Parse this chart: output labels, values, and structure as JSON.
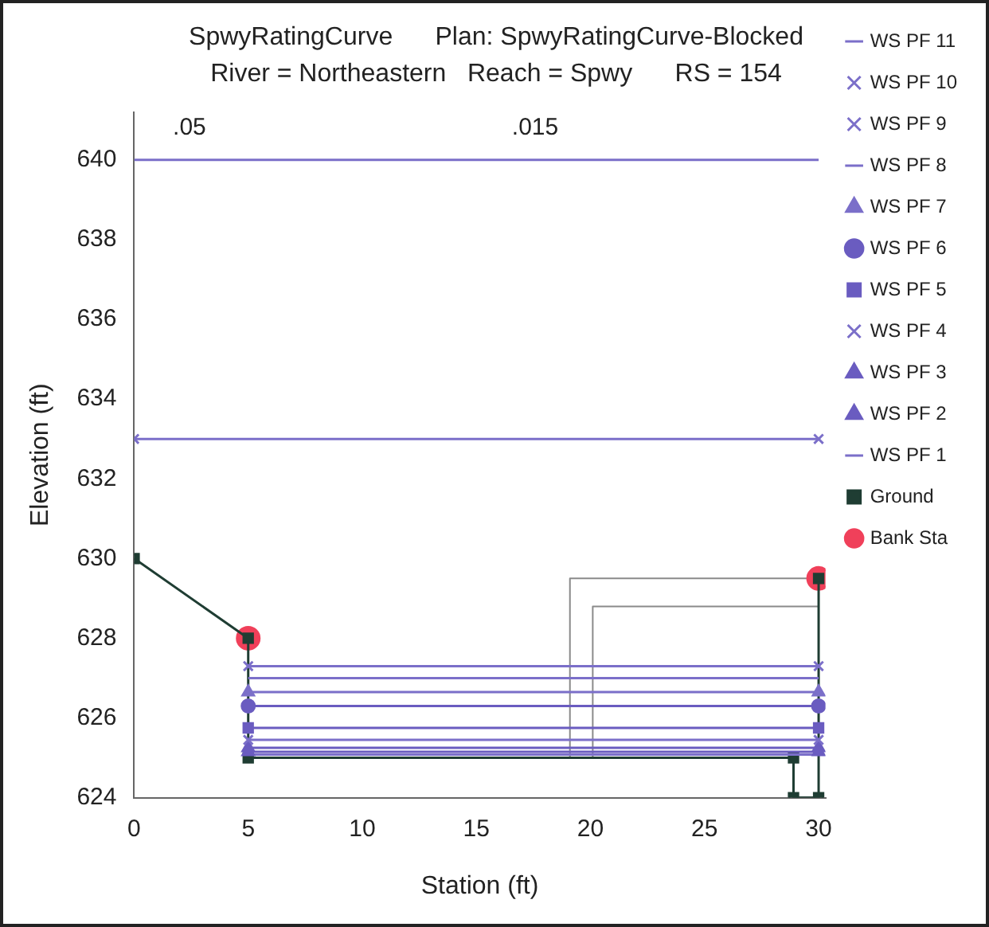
{
  "chart_data": {
    "type": "line",
    "title": "SpwyRatingCurve      Plan: SpwyRatingCurve-Blocked",
    "subtitle": "River = Northeastern   Reach = Spwy      RS = 154",
    "xlabel": "Station (ft)",
    "ylabel": "Elevation (ft)",
    "xlim": [
      0,
      30.3
    ],
    "ylim": [
      624,
      641.2
    ],
    "xticks": [
      0,
      5,
      10,
      15,
      20,
      25,
      30
    ],
    "yticks": [
      624,
      626,
      628,
      630,
      632,
      634,
      636,
      638,
      640
    ],
    "legend": "right",
    "grid": false,
    "annotations": [
      ".05",
      ".015"
    ],
    "series": [
      {
        "name": "WS PF 11",
        "color": "#7b6fc9",
        "marker": "none",
        "x": [
          0,
          30
        ],
        "values": [
          640,
          640
        ]
      },
      {
        "name": "WS PF 10",
        "color": "#7b6fc9",
        "marker": "cross",
        "x": [
          0,
          30
        ],
        "values": [
          633,
          633
        ]
      },
      {
        "name": "WS PF 9",
        "color": "#7b6fc9",
        "marker": "cross",
        "x": [
          5,
          30
        ],
        "values": [
          627.3,
          627.3
        ]
      },
      {
        "name": "WS PF 8",
        "color": "#7b6fc9",
        "marker": "none",
        "x": [
          5,
          30
        ],
        "values": [
          627,
          627
        ]
      },
      {
        "name": "WS PF 7",
        "color": "#7b6fc9",
        "marker": "triangle",
        "x": [
          5,
          30
        ],
        "values": [
          626.65,
          626.65
        ]
      },
      {
        "name": "WS PF 6",
        "color": "#6a5cc0",
        "marker": "circle",
        "x": [
          5,
          30
        ],
        "values": [
          626.3,
          626.3
        ]
      },
      {
        "name": "WS PF 5",
        "color": "#6a5cc0",
        "marker": "square",
        "x": [
          5,
          30
        ],
        "values": [
          625.75,
          625.75
        ]
      },
      {
        "name": "WS PF 4",
        "color": "#7b6fc9",
        "marker": "cross",
        "x": [
          5,
          30
        ],
        "values": [
          625.45,
          625.45
        ]
      },
      {
        "name": "WS PF 3",
        "color": "#6a5cc0",
        "marker": "triangle",
        "x": [
          5,
          30
        ],
        "values": [
          625.25,
          625.25
        ]
      },
      {
        "name": "WS PF 2",
        "color": "#6a5cc0",
        "marker": "triangle",
        "x": [
          5,
          30
        ],
        "values": [
          625.15,
          625.15
        ]
      },
      {
        "name": "WS PF 1",
        "color": "#7b6fc9",
        "marker": "none",
        "x": [
          5,
          30
        ],
        "values": [
          625.08,
          625.08
        ]
      },
      {
        "name": "Ground",
        "color": "#1f3d33",
        "marker": "square",
        "x": [
          0,
          5,
          5,
          28.9,
          28.9,
          30,
          30
        ],
        "values": [
          630,
          628,
          625,
          625,
          624,
          624,
          629.5
        ]
      },
      {
        "name": "Bank Sta",
        "type": "scatter",
        "color": "#f0405a",
        "marker": "circle",
        "x": [
          5,
          30
        ],
        "values": [
          628,
          629.5
        ]
      },
      {
        "color": "#8a8a8a",
        "marker": "none",
        "x": [
          19.1,
          19.1,
          30
        ],
        "values": [
          625,
          629.5,
          629.5
        ]
      },
      {
        "color": "#8a8a8a",
        "marker": "none",
        "x": [
          20.1,
          20.1,
          30
        ],
        "values": [
          625,
          628.8,
          628.8
        ]
      }
    ]
  }
}
